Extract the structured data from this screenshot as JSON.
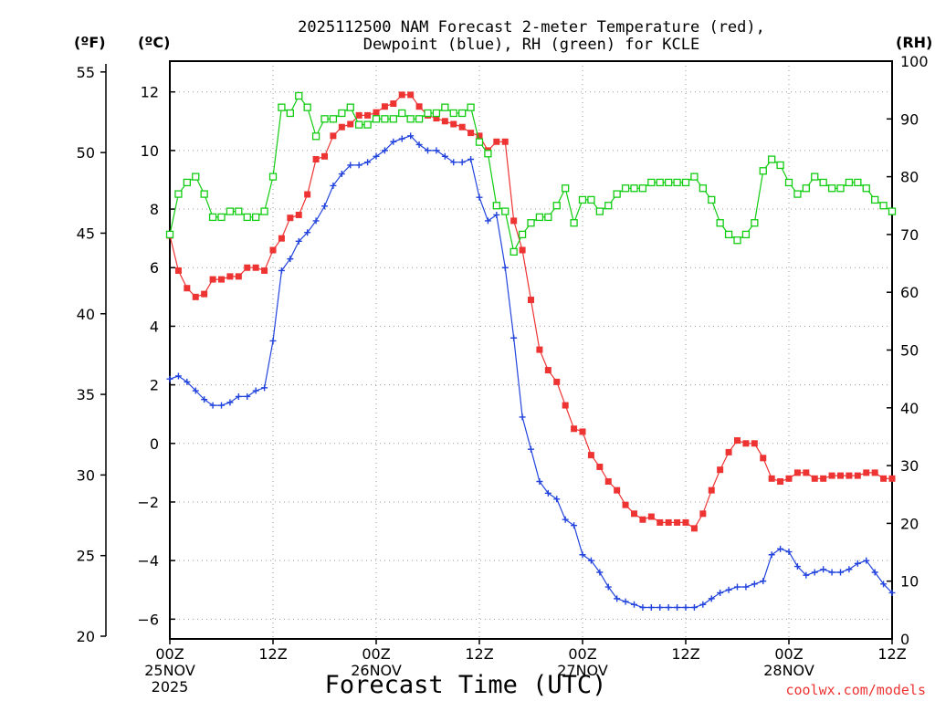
{
  "chart_data": {
    "type": "line",
    "title_lines": [
      "2025112500 NAM Forecast 2-meter Temperature (red),",
      "Dewpoint (blue), RH (green) for KCLE"
    ],
    "left_unit_f": "(ºF)",
    "left_unit_c": "(ºC)",
    "right_unit": "(RH)",
    "xlabel": "Forecast Time (UTC)",
    "credit": "coolwx.com/models",
    "x_hours_range": [
      0,
      84
    ],
    "celsius_range": [
      -6.675,
      13.05
    ],
    "fahrenheit_range": [
      20,
      55.5
    ],
    "rh_range": [
      0,
      100
    ],
    "f_ticks": [
      20,
      25,
      30,
      35,
      40,
      45,
      50,
      55
    ],
    "c_ticks": [
      -6,
      -4,
      -2,
      0,
      2,
      4,
      6,
      8,
      10,
      12
    ],
    "rh_ticks": [
      0,
      10,
      20,
      30,
      40,
      50,
      60,
      70,
      80,
      90,
      100
    ],
    "x_ticks": [
      {
        "h": 0,
        "lines": [
          "00Z",
          "25NOV",
          "2025"
        ]
      },
      {
        "h": 12,
        "lines": [
          "12Z"
        ]
      },
      {
        "h": 24,
        "lines": [
          "00Z",
          "26NOV"
        ]
      },
      {
        "h": 36,
        "lines": [
          "12Z"
        ]
      },
      {
        "h": 48,
        "lines": [
          "00Z",
          "27NOV"
        ]
      },
      {
        "h": 60,
        "lines": [
          "12Z"
        ]
      },
      {
        "h": 72,
        "lines": [
          "00Z",
          "28NOV"
        ]
      },
      {
        "h": 84,
        "lines": [
          "12Z"
        ]
      }
    ],
    "colors": {
      "temperature": "#ee3333",
      "dewpoint": "#2244dd",
      "rh": "#11cc11",
      "grid": "#999999",
      "axis": "#000000",
      "credit": "#ee3333"
    },
    "series": [
      {
        "name": "Temperature",
        "unit": "C",
        "marker": "square-filled",
        "x_hours": [
          0,
          1,
          2,
          3,
          4,
          5,
          6,
          7,
          8,
          9,
          10,
          11,
          12,
          13,
          14,
          15,
          16,
          17,
          18,
          19,
          20,
          21,
          22,
          23,
          24,
          25,
          26,
          27,
          28,
          29,
          30,
          31,
          32,
          33,
          34,
          35,
          36,
          37,
          38,
          39,
          40,
          41,
          42,
          43,
          44,
          45,
          46,
          47,
          48,
          49,
          50,
          51,
          52,
          53,
          54,
          55,
          56,
          57,
          58,
          59,
          60,
          61,
          62,
          63,
          64,
          65,
          66,
          67,
          68,
          69,
          70,
          71,
          72,
          73,
          74,
          75,
          76,
          77,
          78,
          79,
          80,
          81,
          82,
          83,
          84
        ],
        "values": [
          7.1,
          5.9,
          5.3,
          5.0,
          5.1,
          5.6,
          5.6,
          5.7,
          5.7,
          6.0,
          6.0,
          5.9,
          6.6,
          7.0,
          7.7,
          7.8,
          8.5,
          9.7,
          9.8,
          10.5,
          10.8,
          10.9,
          11.2,
          11.2,
          11.3,
          11.5,
          11.6,
          11.9,
          11.9,
          11.5,
          11.2,
          11.1,
          11.0,
          10.9,
          10.8,
          10.6,
          10.5,
          10.0,
          10.3,
          10.3,
          7.6,
          6.6,
          4.9,
          3.2,
          2.5,
          2.1,
          1.3,
          0.5,
          0.4,
          -0.4,
          -0.8,
          -1.3,
          -1.6,
          -2.1,
          -2.4,
          -2.6,
          -2.5,
          -2.7,
          -2.7,
          -2.7,
          -2.7,
          -2.9,
          -2.4,
          -1.6,
          -0.9,
          -0.3,
          0.1,
          0.0,
          0.0,
          -0.5,
          -1.2,
          -1.3,
          -1.2,
          -1.0,
          -1.0,
          -1.2,
          -1.2,
          -1.1,
          -1.1,
          -1.1,
          -1.1,
          -1.0,
          -1.0,
          -1.2,
          -1.2
        ]
      },
      {
        "name": "Dewpoint",
        "unit": "C",
        "marker": "plus",
        "x_hours": [
          0,
          1,
          2,
          3,
          4,
          5,
          6,
          7,
          8,
          9,
          10,
          11,
          12,
          13,
          14,
          15,
          16,
          17,
          18,
          19,
          20,
          21,
          22,
          23,
          24,
          25,
          26,
          27,
          28,
          29,
          30,
          31,
          32,
          33,
          34,
          35,
          36,
          37,
          38,
          39,
          40,
          41,
          42,
          43,
          44,
          45,
          46,
          47,
          48,
          49,
          50,
          51,
          52,
          53,
          54,
          55,
          56,
          57,
          58,
          59,
          60,
          61,
          62,
          63,
          64,
          65,
          66,
          67,
          68,
          69,
          70,
          71,
          72,
          73,
          74,
          75,
          76,
          77,
          78,
          79,
          80,
          81,
          82,
          83,
          84
        ],
        "values": [
          2.2,
          2.3,
          2.1,
          1.8,
          1.5,
          1.3,
          1.3,
          1.4,
          1.6,
          1.6,
          1.8,
          1.9,
          3.5,
          5.9,
          6.3,
          6.9,
          7.2,
          7.6,
          8.1,
          8.8,
          9.2,
          9.5,
          9.5,
          9.6,
          9.8,
          10.0,
          10.3,
          10.4,
          10.5,
          10.2,
          10.0,
          10.0,
          9.8,
          9.6,
          9.6,
          9.7,
          8.4,
          7.6,
          7.8,
          6.0,
          3.6,
          0.9,
          -0.2,
          -1.3,
          -1.7,
          -1.9,
          -2.6,
          -2.8,
          -3.8,
          -4.0,
          -4.4,
          -4.9,
          -5.3,
          -5.4,
          -5.5,
          -5.6,
          -5.6,
          -5.6,
          -5.6,
          -5.6,
          -5.6,
          -5.6,
          -5.5,
          -5.3,
          -5.1,
          -5.0,
          -4.9,
          -4.9,
          -4.8,
          -4.7,
          -3.8,
          -3.6,
          -3.7,
          -4.2,
          -4.5,
          -4.4,
          -4.3,
          -4.4,
          -4.4,
          -4.3,
          -4.1,
          -4.0,
          -4.4,
          -4.8,
          -5.1
        ]
      },
      {
        "name": "RH",
        "unit": "%",
        "marker": "square-open",
        "x_hours": [
          0,
          1,
          2,
          3,
          4,
          5,
          6,
          7,
          8,
          9,
          10,
          11,
          12,
          13,
          14,
          15,
          16,
          17,
          18,
          19,
          20,
          21,
          22,
          23,
          24,
          25,
          26,
          27,
          28,
          29,
          30,
          31,
          32,
          33,
          34,
          35,
          36,
          37,
          38,
          39,
          40,
          41,
          42,
          43,
          44,
          45,
          46,
          47,
          48,
          49,
          50,
          51,
          52,
          53,
          54,
          55,
          56,
          57,
          58,
          59,
          60,
          61,
          62,
          63,
          64,
          65,
          66,
          67,
          68,
          69,
          70,
          71,
          72,
          73,
          74,
          75,
          76,
          77,
          78,
          79,
          80,
          81,
          82,
          83,
          84
        ],
        "values": [
          70,
          77,
          79,
          80,
          77,
          73,
          73,
          74,
          74,
          73,
          73,
          74,
          80,
          92,
          91,
          94,
          92,
          87,
          90,
          90,
          91,
          92,
          89,
          89,
          90,
          90,
          90,
          91,
          90,
          90,
          91,
          91,
          92,
          91,
          91,
          92,
          86,
          84,
          75,
          74,
          67,
          70,
          72,
          73,
          73,
          75,
          78,
          72,
          76,
          76,
          74,
          75,
          77,
          78,
          78,
          78,
          79,
          79,
          79,
          79,
          79,
          80,
          78,
          76,
          72,
          70,
          69,
          70,
          72,
          81,
          83,
          82,
          79,
          77,
          78,
          80,
          79,
          78,
          78,
          79,
          79,
          78,
          76,
          75,
          74
        ]
      }
    ]
  }
}
